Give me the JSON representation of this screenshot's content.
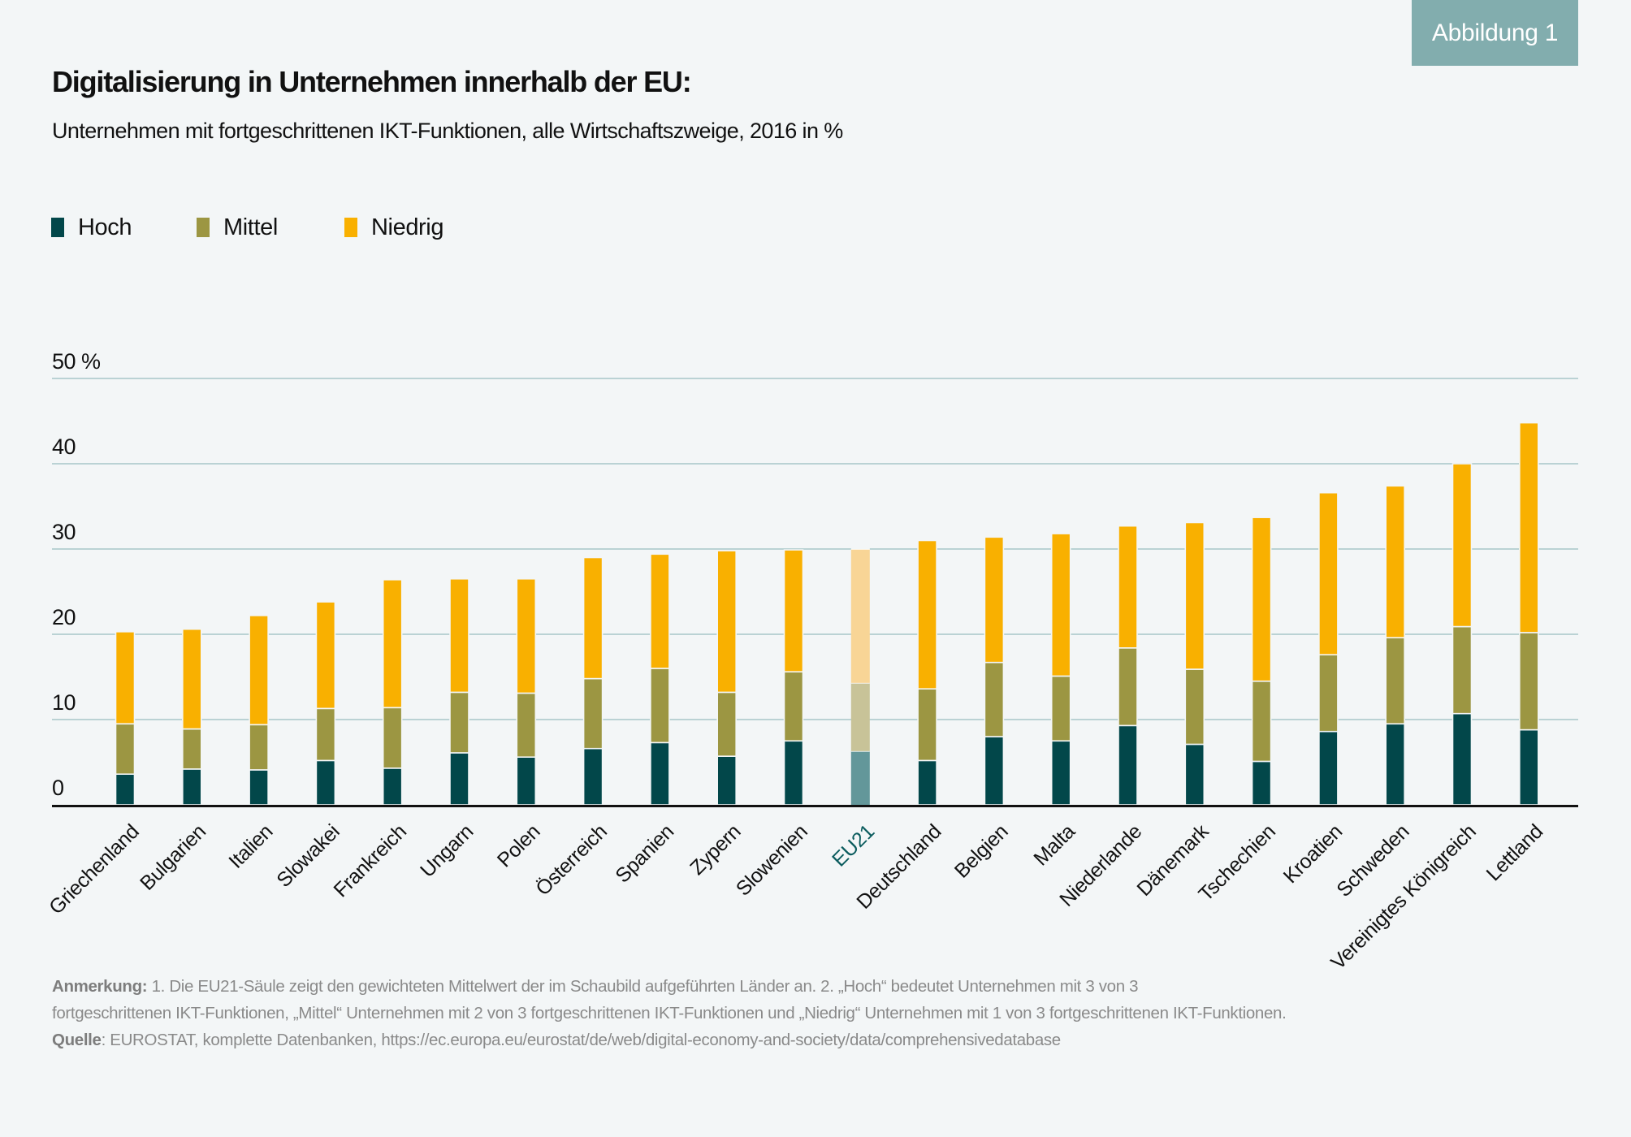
{
  "badge": "Abbildung 1",
  "title": "Digitalisierung in Unternehmen innerhalb der EU:",
  "subtitle": "Unternehmen mit fortgeschrittenen IKT-Funktionen, alle Wirtschaftszweige, 2016 in %",
  "legend": [
    {
      "label": "Hoch",
      "color": "#02474a"
    },
    {
      "label": "Mittel",
      "color": "#9c9642"
    },
    {
      "label": "Niedrig",
      "color": "#f9b000"
    }
  ],
  "footnote": {
    "note_label": "Anmerkung:",
    "note_line1": " 1. Die EU21-Säule zeigt den gewichteten Mittelwert der im Schaubild aufgeführten Länder an. 2. „Hoch“ bedeutet Unternehmen mit 3 von 3",
    "note_line2": "fortgeschrittenen IKT-Funktionen, „Mittel“ Unternehmen mit 2 von 3 fortgeschrittenen IKT-Funktionen und „Niedrig“ Unternehmen mit 1 von 3 fortgeschrittenen IKT-Funktionen.",
    "source_label": "Quelle",
    "source_text": ": EUROSTAT, komplette Datenbanken, https://ec.europa.eu/eurostat/de/web/digital-economy-and-society/data/comprehensivedatabase"
  },
  "chart_data": {
    "type": "bar",
    "stacked": true,
    "title": "Digitalisierung in Unternehmen innerhalb der EU:",
    "subtitle": "Unternehmen mit fortgeschrittenen IKT-Funktionen, alle Wirtschaftszweige, 2016 in %",
    "xlabel": "",
    "ylabel": "",
    "ylim": [
      0,
      50
    ],
    "yticks": [
      0,
      10,
      20,
      30,
      40,
      50
    ],
    "ytick_labels": [
      "0",
      "10",
      "20",
      "30",
      "40",
      "50 %"
    ],
    "grid": true,
    "legend_position": "top-left",
    "highlight_category": "EU21",
    "highlight_colors": {
      "Hoch": "#63979a",
      "Mittel": "#c8c398",
      "Niedrig": "#f8d596",
      "label": "#0b5c5e"
    },
    "categories": [
      "Griechenland",
      "Bulgarien",
      "Italien",
      "Slowakei",
      "Frankreich",
      "Ungarn",
      "Polen",
      "Österreich",
      "Spanien",
      "Zypern",
      "Slowenien",
      "EU21",
      "Deutschland",
      "Belgien",
      "Malta",
      "Niederlande",
      "Dänemark",
      "Tschechien",
      "Kroatien",
      "Schweden",
      "Vereinigtes Königreich",
      "Lettland"
    ],
    "series": [
      {
        "name": "Hoch",
        "color": "#02474a",
        "values": [
          3.6,
          4.2,
          4.1,
          5.2,
          4.3,
          6.1,
          5.6,
          6.6,
          7.3,
          5.7,
          7.5,
          6.3,
          5.2,
          8.0,
          7.5,
          9.3,
          7.1,
          5.1,
          8.6,
          9.5,
          10.7,
          8.8
        ]
      },
      {
        "name": "Mittel",
        "color": "#9c9642",
        "values": [
          5.9,
          4.7,
          5.3,
          6.1,
          7.1,
          7.1,
          7.5,
          8.2,
          8.7,
          7.5,
          8.1,
          8.0,
          8.4,
          8.7,
          7.6,
          9.1,
          8.8,
          9.4,
          9.0,
          10.1,
          10.2,
          11.4
        ]
      },
      {
        "name": "Niedrig",
        "color": "#f9b000",
        "values": [
          10.8,
          11.7,
          12.8,
          12.5,
          15.0,
          13.3,
          13.4,
          14.2,
          13.4,
          16.6,
          14.3,
          15.7,
          17.4,
          14.7,
          16.7,
          14.3,
          17.2,
          19.2,
          19.0,
          17.8,
          19.1,
          24.6
        ]
      }
    ],
    "totals": [
      20.3,
      20.6,
      22.2,
      23.8,
      26.4,
      26.5,
      26.5,
      29.0,
      29.4,
      29.8,
      29.9,
      30.0,
      31.0,
      31.4,
      31.8,
      32.7,
      33.1,
      33.7,
      36.6,
      37.4,
      40.0,
      44.8
    ]
  }
}
